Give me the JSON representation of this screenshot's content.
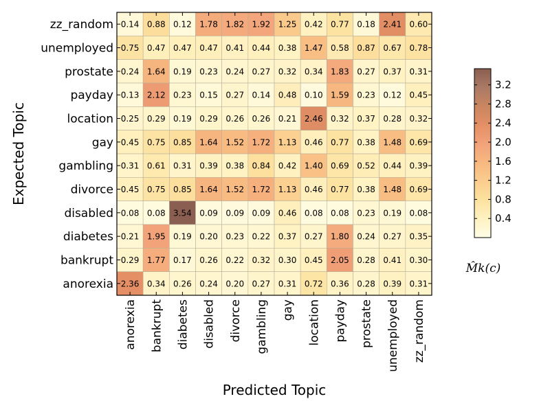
{
  "chart_data": {
    "type": "heatmap",
    "xlabel": "Predicted Topic",
    "ylabel": "Expected Topic",
    "x_categories": [
      "anorexia",
      "bankrupt",
      "diabetes",
      "disabled",
      "divorce",
      "gambling",
      "gay",
      "location",
      "payday",
      "prostate",
      "unemployed",
      "zz_random"
    ],
    "y_categories": [
      "zz_random",
      "unemployed",
      "prostate",
      "payday",
      "location",
      "gay",
      "gambling",
      "divorce",
      "disabled",
      "diabetes",
      "bankrupt",
      "anorexia"
    ],
    "values": [
      [
        0.14,
        0.88,
        0.12,
        1.78,
        1.82,
        1.92,
        1.25,
        0.42,
        0.77,
        0.18,
        2.41,
        0.6
      ],
      [
        0.75,
        0.47,
        0.47,
        0.47,
        0.41,
        0.44,
        0.38,
        1.47,
        0.58,
        0.87,
        0.67,
        0.78
      ],
      [
        0.24,
        1.64,
        0.19,
        0.23,
        0.24,
        0.27,
        0.32,
        0.34,
        1.83,
        0.27,
        0.37,
        0.31
      ],
      [
        0.13,
        2.12,
        0.23,
        0.15,
        0.27,
        0.14,
        0.48,
        0.1,
        1.59,
        0.23,
        0.12,
        0.45
      ],
      [
        0.25,
        0.29,
        0.19,
        0.29,
        0.26,
        0.26,
        0.21,
        2.46,
        0.32,
        0.37,
        0.28,
        0.32
      ],
      [
        0.45,
        0.75,
        0.85,
        1.64,
        1.52,
        1.72,
        1.13,
        0.46,
        0.77,
        0.38,
        1.48,
        0.69
      ],
      [
        0.31,
        0.61,
        0.31,
        0.39,
        0.38,
        0.84,
        0.42,
        1.4,
        0.69,
        0.52,
        0.44,
        0.39
      ],
      [
        0.45,
        0.75,
        0.85,
        1.64,
        1.52,
        1.72,
        1.13,
        0.46,
        0.77,
        0.38,
        1.48,
        0.69
      ],
      [
        0.08,
        0.08,
        3.54,
        0.09,
        0.09,
        0.09,
        0.46,
        0.08,
        0.08,
        0.23,
        0.19,
        0.08
      ],
      [
        0.21,
        1.95,
        0.19,
        0.2,
        0.23,
        0.22,
        0.37,
        0.27,
        1.8,
        0.24,
        0.27,
        0.35
      ],
      [
        0.29,
        1.77,
        0.17,
        0.26,
        0.22,
        0.32,
        0.3,
        0.45,
        2.05,
        0.28,
        0.41,
        0.3
      ],
      [
        2.36,
        0.34,
        0.26,
        0.24,
        0.2,
        0.27,
        0.31,
        0.72,
        0.36,
        0.28,
        0.39,
        0.31
      ]
    ],
    "value_labels": [
      [
        "0.14",
        "0.88",
        "0.12",
        "1.78",
        "1.82",
        "1.92",
        "1.25",
        "0.42",
        "0.77",
        "0.18",
        "2.41",
        "0.60"
      ],
      [
        "0.75",
        "0.47",
        "0.47",
        "0.47",
        "0.41",
        "0.44",
        "0.38",
        "1.47",
        "0.58",
        "0.87",
        "0.67",
        "0.78"
      ],
      [
        "0.24",
        "1.64",
        "0.19",
        "0.23",
        "0.24",
        "0.27",
        "0.32",
        "0.34",
        "1.83",
        "0.27",
        "0.37",
        "0.31"
      ],
      [
        "0.13",
        "2.12",
        "0.23",
        "0.15",
        "0.27",
        "0.14",
        "0.48",
        "0.10",
        "1.59",
        "0.23",
        "0.12",
        "0.45"
      ],
      [
        "0.25",
        "0.29",
        "0.19",
        "0.29",
        "0.26",
        "0.26",
        "0.21",
        "2.46",
        "0.32",
        "0.37",
        "0.28",
        "0.32"
      ],
      [
        "0.45",
        "0.75",
        "0.85",
        "1.64",
        "1.52",
        "1.72",
        "1.13",
        "0.46",
        "0.77",
        "0.38",
        "1.48",
        "0.69"
      ],
      [
        "0.31",
        "0.61",
        "0.31",
        "0.39",
        "0.38",
        "0.84",
        "0.42",
        "1.40",
        "0.69",
        "0.52",
        "0.44",
        "0.39"
      ],
      [
        "0.45",
        "0.75",
        "0.85",
        "1.64",
        "1.52",
        "1.72",
        "1.13",
        "0.46",
        "0.77",
        "0.38",
        "1.48",
        "0.69"
      ],
      [
        "0.08",
        "0.08",
        "3.54",
        "0.09",
        "0.09",
        "0.09",
        "0.46",
        "0.08",
        "0.08",
        "0.23",
        "0.19",
        "0.08"
      ],
      [
        "0.21",
        "1.95",
        "0.19",
        "0.20",
        "0.23",
        "0.22",
        "0.37",
        "0.27",
        "1.80",
        "0.24",
        "0.27",
        "0.35"
      ],
      [
        "0.29",
        "1.77",
        "0.17",
        "0.26",
        "0.22",
        "0.32",
        "0.30",
        "0.45",
        "2.05",
        "0.28",
        "0.41",
        "0.30"
      ],
      [
        "2.36",
        "0.34",
        "0.26",
        "0.24",
        "0.20",
        "0.27",
        "0.31",
        "0.72",
        "0.36",
        "0.28",
        "0.39",
        "0.31"
      ]
    ],
    "colorbar": {
      "label": "M̂k(c)",
      "vmin": 0.0,
      "vmax": 3.54,
      "ticks": [
        0.4,
        0.8,
        1.2,
        1.6,
        2.0,
        2.4,
        2.8,
        3.2
      ],
      "tick_labels": [
        "0.4",
        "0.8",
        "1.2",
        "1.6",
        "2.0",
        "2.4",
        "2.8",
        "3.2"
      ],
      "colormap": "YlOrBr-like with alpha",
      "color_stops": [
        "#fffde6",
        "#fff2c2",
        "#fde2a0",
        "#fbcd8e",
        "#f7b880",
        "#f2a27a",
        "#e58f66",
        "#c98660",
        "#aa7a66",
        "#8a5e50"
      ]
    },
    "grid": true
  }
}
